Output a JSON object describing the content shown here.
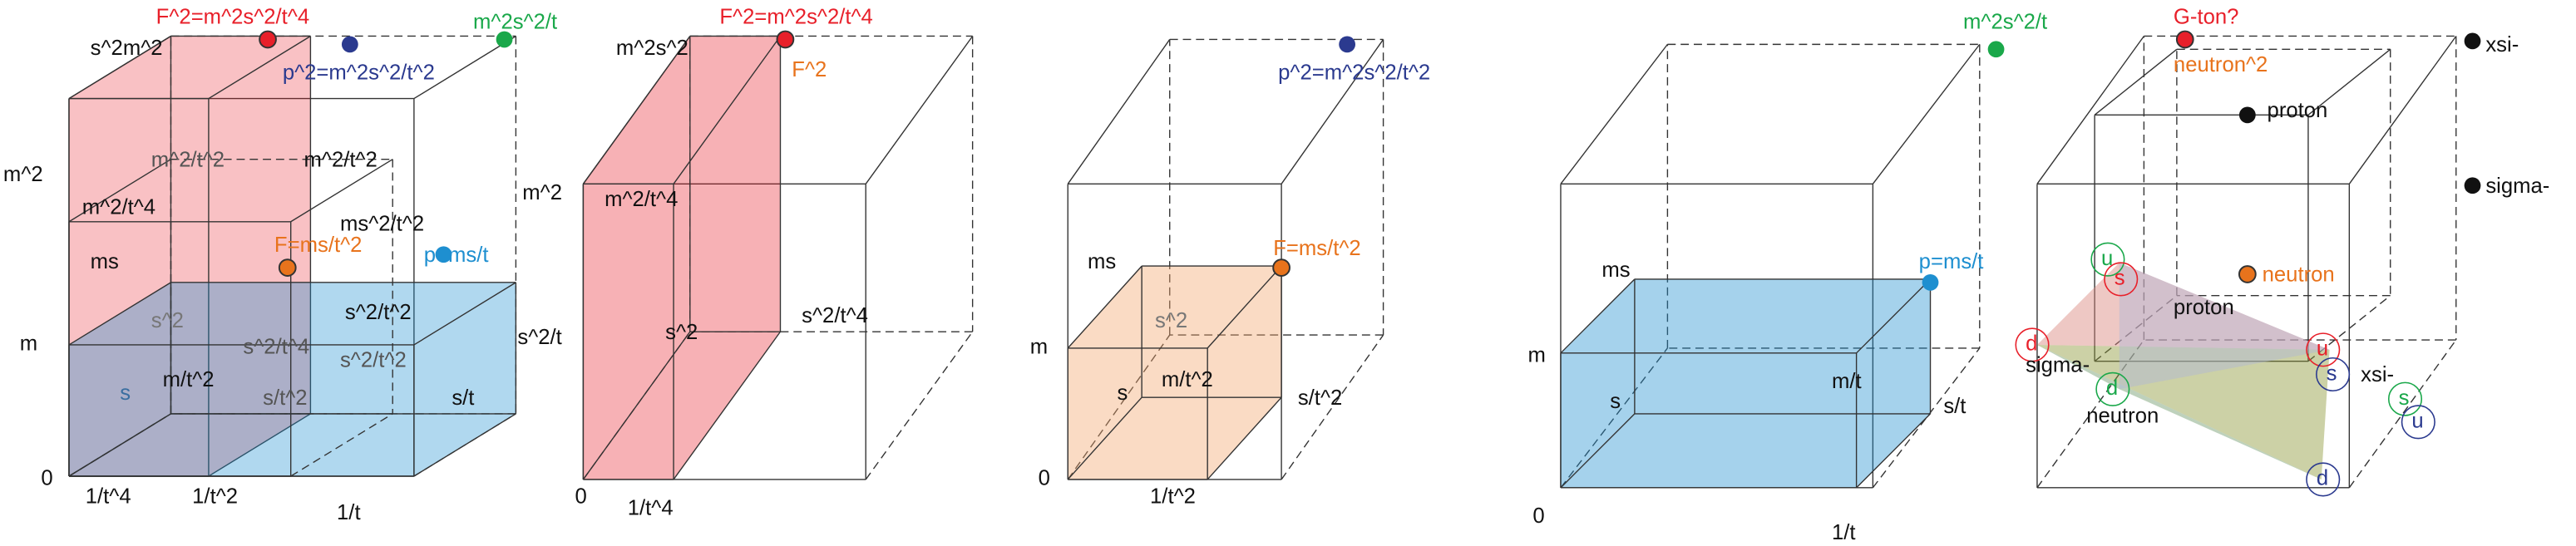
{
  "panels": [
    {
      "labels": [
        "s^2m^2",
        "F^2=m^2s^2/t^4",
        "m^2s^2/t",
        "p^2=m^2s^2/t^2",
        "m^2",
        "m^2/t^2",
        "m^2/t^2",
        "m^2/t^4",
        "ms^2/t^2",
        "ms",
        "F=ms/t^2",
        "p=ms/t",
        "m",
        "s^2/t^2",
        "s^2/t",
        "s^2",
        "s^2/t^4",
        "s^2/t^2",
        "m/t^2",
        "s",
        "s/t^2",
        "s/t",
        "0",
        "1/t^4",
        "1/t^2",
        "1/t"
      ]
    },
    {
      "labels": [
        "m^2s^2",
        "F^2=m^2s^2/t^4",
        "F^2",
        "m^2",
        "m^2/t^4",
        "s^2",
        "s^2/t^4",
        "0",
        "1/t^4"
      ]
    },
    {
      "labels": [
        "p^2=m^2s^2/t^2",
        "ms",
        "F=ms/t^2",
        "m",
        "s^2",
        "s",
        "m/t^2",
        "s/t^2",
        "0",
        "1/t^2"
      ]
    },
    {
      "labels": [
        "m^2s^2/t",
        "ms",
        "p=ms/t",
        "m",
        "s",
        "m/t",
        "s/t",
        "0",
        "1/t"
      ]
    },
    {
      "labels": [
        "G-ton?",
        "neutron^2",
        "xsi-",
        "proton",
        "sigma-",
        "neutron",
        "proton",
        "u",
        "s",
        "d",
        "u",
        "sigma-",
        "s",
        "xsi-",
        "d",
        "neutron",
        "s",
        "u",
        "d"
      ]
    }
  ]
}
